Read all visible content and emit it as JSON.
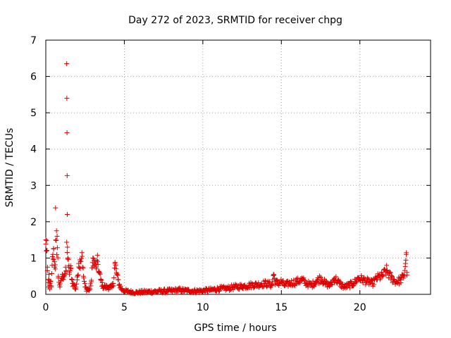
{
  "chart_data": {
    "type": "scatter",
    "title": "Day 272 of 2023, SRMTID for receiver chpg",
    "xlabel": "GPS time / hours",
    "ylabel": "SRMTID / TECUs",
    "xlim": [
      0,
      24.5
    ],
    "ylim": [
      0,
      7
    ],
    "xticks": [
      0,
      5,
      10,
      15,
      20
    ],
    "yticks": [
      0,
      1,
      2,
      3,
      4,
      5,
      6,
      7
    ],
    "grid": true,
    "marker": "+",
    "color": "#e00000",
    "x_end_hours": 23.0,
    "series": [
      {
        "name": "SRMTID",
        "points": [
          [
            0.0,
            1.5
          ],
          [
            0.05,
            1.48
          ],
          [
            0.1,
            0.65
          ],
          [
            0.15,
            0.2
          ],
          [
            0.2,
            0.55
          ],
          [
            0.25,
            0.15
          ],
          [
            0.3,
            0.35
          ],
          [
            0.35,
            0.2
          ],
          [
            0.4,
            0.8
          ],
          [
            0.45,
            1.1
          ],
          [
            0.5,
            1.25
          ],
          [
            0.55,
            0.9
          ],
          [
            0.6,
            0.7
          ],
          [
            0.62,
            2.38
          ],
          [
            0.68,
            1.75
          ],
          [
            0.72,
            1.6
          ],
          [
            0.8,
            0.5
          ],
          [
            0.9,
            0.2
          ],
          [
            1.0,
            0.45
          ],
          [
            1.1,
            0.5
          ],
          [
            1.2,
            0.55
          ],
          [
            1.3,
            0.65
          ],
          [
            1.33,
            6.35
          ],
          [
            1.34,
            5.4
          ],
          [
            1.35,
            4.45
          ],
          [
            1.36,
            3.27
          ],
          [
            1.37,
            2.2
          ],
          [
            1.38,
            1.3
          ],
          [
            1.4,
            1.0
          ],
          [
            1.45,
            0.75
          ],
          [
            1.5,
            0.6
          ],
          [
            1.6,
            0.7
          ],
          [
            1.7,
            0.3
          ],
          [
            1.8,
            0.25
          ],
          [
            1.9,
            0.15
          ],
          [
            2.0,
            0.4
          ],
          [
            2.1,
            0.85
          ],
          [
            2.2,
            0.9
          ],
          [
            2.3,
            1.15
          ],
          [
            2.4,
            0.5
          ],
          [
            2.5,
            0.2
          ],
          [
            2.6,
            0.15
          ],
          [
            2.7,
            0.12
          ],
          [
            2.8,
            0.15
          ],
          [
            2.9,
            0.35
          ],
          [
            3.0,
            1.0
          ],
          [
            3.1,
            0.85
          ],
          [
            3.2,
            0.75
          ],
          [
            3.3,
            0.9
          ],
          [
            3.4,
            0.6
          ],
          [
            3.5,
            0.4
          ],
          [
            3.6,
            0.25
          ],
          [
            3.7,
            0.2
          ],
          [
            3.8,
            0.2
          ],
          [
            3.9,
            0.2
          ],
          [
            4.0,
            0.2
          ],
          [
            4.1,
            0.18
          ],
          [
            4.2,
            0.2
          ],
          [
            4.3,
            0.3
          ],
          [
            4.4,
            0.85
          ],
          [
            4.5,
            0.6
          ],
          [
            4.6,
            0.4
          ],
          [
            4.7,
            0.25
          ],
          [
            4.8,
            0.15
          ],
          [
            5.0,
            0.1
          ],
          [
            5.2,
            0.08
          ],
          [
            5.5,
            0.06
          ],
          [
            5.8,
            0.05
          ],
          [
            6.0,
            0.06
          ],
          [
            6.5,
            0.07
          ],
          [
            7.0,
            0.08
          ],
          [
            7.5,
            0.09
          ],
          [
            8.0,
            0.1
          ],
          [
            8.5,
            0.12
          ],
          [
            9.0,
            0.1
          ],
          [
            9.5,
            0.09
          ],
          [
            10.0,
            0.1
          ],
          [
            10.5,
            0.12
          ],
          [
            11.0,
            0.15
          ],
          [
            11.5,
            0.16
          ],
          [
            12.0,
            0.2
          ],
          [
            12.5,
            0.22
          ],
          [
            13.0,
            0.25
          ],
          [
            13.5,
            0.27
          ],
          [
            14.0,
            0.3
          ],
          [
            14.4,
            0.25
          ],
          [
            14.5,
            0.55
          ],
          [
            14.6,
            0.35
          ],
          [
            14.8,
            0.3
          ],
          [
            15.0,
            0.35
          ],
          [
            15.2,
            0.25
          ],
          [
            15.5,
            0.3
          ],
          [
            16.0,
            0.35
          ],
          [
            16.3,
            0.4
          ],
          [
            16.6,
            0.3
          ],
          [
            16.9,
            0.25
          ],
          [
            17.2,
            0.35
          ],
          [
            17.5,
            0.45
          ],
          [
            17.8,
            0.3
          ],
          [
            18.1,
            0.25
          ],
          [
            18.4,
            0.45
          ],
          [
            18.7,
            0.3
          ],
          [
            19.0,
            0.2
          ],
          [
            19.3,
            0.25
          ],
          [
            19.6,
            0.3
          ],
          [
            19.9,
            0.45
          ],
          [
            20.2,
            0.4
          ],
          [
            20.5,
            0.35
          ],
          [
            20.8,
            0.3
          ],
          [
            21.1,
            0.45
          ],
          [
            21.4,
            0.5
          ],
          [
            21.7,
            0.65
          ],
          [
            22.0,
            0.45
          ],
          [
            22.3,
            0.35
          ],
          [
            22.6,
            0.4
          ],
          [
            22.8,
            0.5
          ],
          [
            22.9,
            0.85
          ],
          [
            22.95,
            1.1
          ],
          [
            23.0,
            0.6
          ]
        ]
      }
    ]
  }
}
